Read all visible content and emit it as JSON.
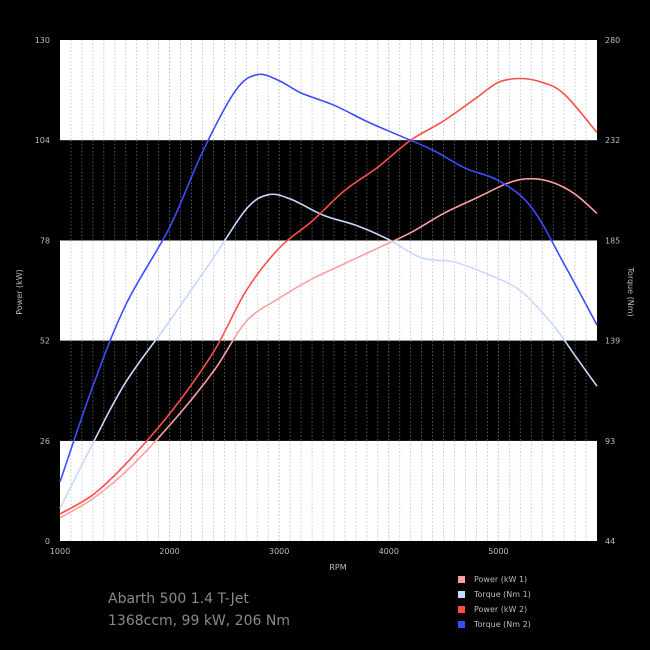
{
  "chart_data": {
    "type": "line",
    "title": "",
    "xlabel": "RPM",
    "ylabel_left": "Power (kW)",
    "ylabel_right": "Torque (Nm)",
    "xlim": [
      1000,
      5900
    ],
    "ylim_left": [
      0,
      130
    ],
    "ylim_right": [
      44,
      290
    ],
    "x_ticks": [
      1000,
      2000,
      3000,
      4000,
      5000
    ],
    "x_tick_labels": [
      "1000",
      "2000",
      "3000",
      "4000",
      "5000"
    ],
    "y_left_ticks": [
      0,
      26,
      52,
      78,
      104,
      130
    ],
    "y_right_ticks": [
      44,
      93,
      139,
      185,
      232,
      280
    ],
    "grid": true,
    "legend_position": "bottom-right",
    "series": [
      {
        "name": "Power (kW 1)",
        "axis": "left",
        "color": "#ff9f9f",
        "x": [
          1000,
          1300,
          1600,
          2000,
          2400,
          2700,
          3000,
          3300,
          3600,
          3900,
          4200,
          4500,
          4800,
          5100,
          5300,
          5500,
          5700,
          5900
        ],
        "y": [
          6,
          11,
          18,
          30,
          44,
          57,
          63,
          68,
          72,
          76,
          80,
          85,
          89,
          93,
          94,
          93,
          90,
          85
        ]
      },
      {
        "name": "Torque (Nm 1)",
        "axis": "right",
        "color": "#c8d8ff",
        "x": [
          1000,
          1300,
          1600,
          2000,
          2400,
          2700,
          2900,
          3100,
          3400,
          3700,
          4000,
          4300,
          4600,
          4900,
          5200,
          5500,
          5700,
          5900
        ],
        "y": [
          60,
          92,
          122,
          152,
          183,
          207,
          214,
          212,
          204,
          199,
          192,
          183,
          181,
          175,
          167,
          150,
          135,
          120
        ]
      },
      {
        "name": "Power (kW 2)",
        "axis": "left",
        "color": "#ff4d4d",
        "x": [
          1000,
          1300,
          1600,
          2000,
          2400,
          2700,
          3000,
          3300,
          3600,
          3900,
          4200,
          4500,
          4800,
          5000,
          5200,
          5400,
          5600,
          5900
        ],
        "y": [
          7,
          12,
          20,
          33,
          49,
          65,
          76,
          83,
          91,
          97,
          104,
          109,
          115,
          119,
          120,
          119,
          116,
          106
        ]
      },
      {
        "name": "Torque (Nm 2)",
        "axis": "right",
        "color": "#3a4dff",
        "x": [
          1000,
          1300,
          1600,
          2000,
          2300,
          2600,
          2800,
          3000,
          3200,
          3500,
          3800,
          4100,
          4400,
          4700,
          5000,
          5300,
          5600,
          5900
        ],
        "y": [
          73,
          120,
          160,
          198,
          235,
          265,
          273,
          270,
          264,
          258,
          250,
          243,
          236,
          227,
          221,
          208,
          180,
          150
        ]
      }
    ]
  },
  "caption": {
    "line1": "Abarth 500 1.4 T-Jet",
    "line2": "1368ccm, 99 kW, 206 Nm"
  }
}
